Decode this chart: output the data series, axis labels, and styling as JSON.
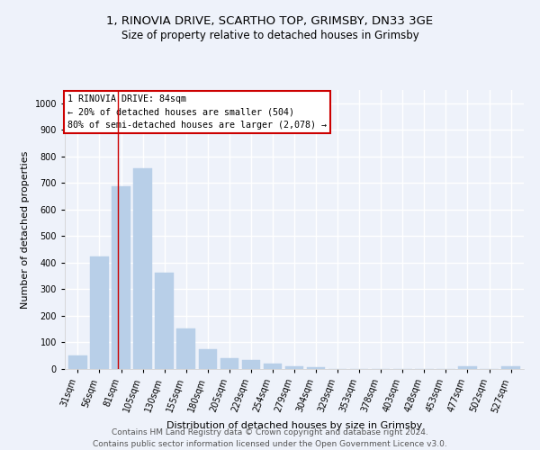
{
  "title_line1": "1, RINOVIA DRIVE, SCARTHO TOP, GRIMSBY, DN33 3GE",
  "title_line2": "Size of property relative to detached houses in Grimsby",
  "xlabel": "Distribution of detached houses by size in Grimsby",
  "ylabel": "Number of detached properties",
  "categories": [
    "31sqm",
    "56sqm",
    "81sqm",
    "105sqm",
    "130sqm",
    "155sqm",
    "180sqm",
    "205sqm",
    "229sqm",
    "254sqm",
    "279sqm",
    "304sqm",
    "329sqm",
    "353sqm",
    "378sqm",
    "403sqm",
    "428sqm",
    "453sqm",
    "477sqm",
    "502sqm",
    "527sqm"
  ],
  "values": [
    52,
    422,
    688,
    757,
    362,
    152,
    75,
    40,
    33,
    22,
    11,
    8,
    1,
    0,
    0,
    0,
    0,
    0,
    9,
    0,
    10
  ],
  "bar_color": "#b8cfe8",
  "bar_edge_color": "#b8cfe8",
  "vline_x": 1.85,
  "vline_color": "#cc0000",
  "annotation_text": "1 RINOVIA DRIVE: 84sqm\n← 20% of detached houses are smaller (504)\n80% of semi-detached houses are larger (2,078) →",
  "annotation_box_color": "#ffffff",
  "annotation_box_edge_color": "#cc0000",
  "ylim": [
    0,
    1050
  ],
  "yticks": [
    0,
    100,
    200,
    300,
    400,
    500,
    600,
    700,
    800,
    900,
    1000
  ],
  "footer_line1": "Contains HM Land Registry data © Crown copyright and database right 2024.",
  "footer_line2": "Contains public sector information licensed under the Open Government Licence v3.0.",
  "background_color": "#eef2fa",
  "grid_color": "#ffffff",
  "title_fontsize": 9.5,
  "subtitle_fontsize": 8.5,
  "axis_label_fontsize": 8,
  "tick_fontsize": 7,
  "footer_fontsize": 6.5
}
